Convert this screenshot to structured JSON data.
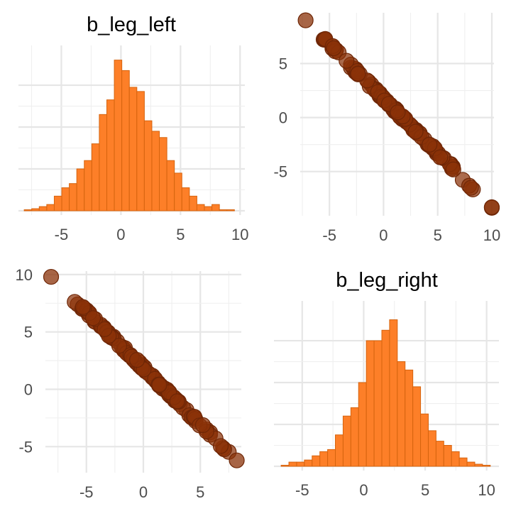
{
  "chart_data": [
    {
      "type": "bar",
      "subtype": "histogram",
      "title": "b_leg_left",
      "xlabel": "",
      "ylabel": "",
      "xlim": [
        -8.6,
        10.4
      ],
      "ylim": [
        0,
        79
      ],
      "x_ticks": [
        -5,
        0,
        5,
        10
      ],
      "x_tick_labels": [
        "-5",
        "0",
        "5",
        "10"
      ],
      "y_ticks_labeled": false,
      "grid": true,
      "color": "#fd7f28",
      "edge_color": "#d6640f",
      "bin_width": 0.63,
      "bins": [
        {
          "x": -7.8,
          "count": 0.5
        },
        {
          "x": -7.17,
          "count": 1
        },
        {
          "x": -6.54,
          "count": 2
        },
        {
          "x": -5.91,
          "count": 3
        },
        {
          "x": -5.28,
          "count": 7
        },
        {
          "x": -4.65,
          "count": 11
        },
        {
          "x": -4.02,
          "count": 13
        },
        {
          "x": -3.39,
          "count": 20
        },
        {
          "x": -2.76,
          "count": 24
        },
        {
          "x": -2.13,
          "count": 32
        },
        {
          "x": -1.5,
          "count": 46
        },
        {
          "x": -0.87,
          "count": 53
        },
        {
          "x": -0.24,
          "count": 72
        },
        {
          "x": 0.39,
          "count": 67
        },
        {
          "x": 1.02,
          "count": 59
        },
        {
          "x": 1.65,
          "count": 57
        },
        {
          "x": 2.28,
          "count": 43
        },
        {
          "x": 2.91,
          "count": 38
        },
        {
          "x": 3.54,
          "count": 35
        },
        {
          "x": 4.17,
          "count": 24
        },
        {
          "x": 4.8,
          "count": 18
        },
        {
          "x": 5.43,
          "count": 11
        },
        {
          "x": 6.06,
          "count": 7
        },
        {
          "x": 6.69,
          "count": 3
        },
        {
          "x": 7.32,
          "count": 2
        },
        {
          "x": 7.95,
          "count": 3
        },
        {
          "x": 8.58,
          "count": 0.5
        },
        {
          "x": 9.21,
          "count": 0.5
        }
      ]
    },
    {
      "type": "scatter",
      "title": "",
      "xlabel": "",
      "ylabel": "",
      "xlim": [
        -7.7,
        10.2
      ],
      "ylim": [
        -8.7,
        9.7
      ],
      "x_ticks": [
        -5,
        0,
        5,
        10
      ],
      "x_tick_labels": [
        "-5",
        "0",
        "5",
        "10"
      ],
      "y_ticks": [
        -5,
        0,
        5
      ],
      "y_tick_labels": [
        "-5",
        "0",
        "5"
      ],
      "grid": true,
      "point_color": "#8a3208",
      "relation": "y ≈ 1.9 − 1.02·x",
      "x_range": [
        -7.2,
        10.0
      ],
      "endpoints": [
        [
          -7.2,
          9.0
        ],
        [
          10.0,
          -8.3
        ]
      ]
    },
    {
      "type": "scatter",
      "title": "",
      "xlabel": "",
      "ylabel": "",
      "xlim": [
        -8.6,
        8.6
      ],
      "ylim": [
        -6.9,
        10.3
      ],
      "x_ticks": [
        -5,
        0,
        5
      ],
      "x_tick_labels": [
        "-5",
        "0",
        "5"
      ],
      "y_ticks": [
        -5,
        0,
        5,
        10
      ],
      "y_tick_labels": [
        "-5",
        "0",
        "5",
        "10"
      ],
      "grid": true,
      "point_color": "#8a3208",
      "relation": "y ≈ 1.8 − 0.98·x",
      "x_range": [
        -8.1,
        8.2
      ],
      "endpoints": [
        [
          -8.1,
          9.8
        ],
        [
          8.2,
          -6.2
        ]
      ]
    },
    {
      "type": "bar",
      "subtype": "histogram",
      "title": "b_leg_right",
      "xlabel": "",
      "ylabel": "",
      "xlim": [
        -7.3,
        11.0
      ],
      "ylim": [
        0,
        79
      ],
      "x_ticks": [
        -5,
        0,
        5,
        10
      ],
      "x_tick_labels": [
        "-5",
        "0",
        "5",
        "10"
      ],
      "y_ticks_labeled": false,
      "grid": true,
      "color": "#fd7f28",
      "edge_color": "#d6640f",
      "bin_width": 0.63,
      "bins": [
        {
          "x": -6.4,
          "count": 0.5
        },
        {
          "x": -5.77,
          "count": 2
        },
        {
          "x": -5.14,
          "count": 2
        },
        {
          "x": -4.51,
          "count": 3
        },
        {
          "x": -3.88,
          "count": 5
        },
        {
          "x": -3.25,
          "count": 7
        },
        {
          "x": -2.62,
          "count": 8
        },
        {
          "x": -1.99,
          "count": 15
        },
        {
          "x": -1.36,
          "count": 24
        },
        {
          "x": -0.73,
          "count": 28
        },
        {
          "x": -0.1,
          "count": 40
        },
        {
          "x": 0.53,
          "count": 60
        },
        {
          "x": 1.16,
          "count": 60
        },
        {
          "x": 1.79,
          "count": 65
        },
        {
          "x": 2.42,
          "count": 70
        },
        {
          "x": 3.05,
          "count": 50
        },
        {
          "x": 3.68,
          "count": 46
        },
        {
          "x": 4.31,
          "count": 38
        },
        {
          "x": 4.94,
          "count": 25
        },
        {
          "x": 5.57,
          "count": 17
        },
        {
          "x": 6.2,
          "count": 12
        },
        {
          "x": 6.83,
          "count": 10
        },
        {
          "x": 7.46,
          "count": 7
        },
        {
          "x": 8.09,
          "count": 4
        },
        {
          "x": 8.72,
          "count": 2
        },
        {
          "x": 9.35,
          "count": 1
        },
        {
          "x": 9.98,
          "count": 0.5
        }
      ]
    }
  ]
}
